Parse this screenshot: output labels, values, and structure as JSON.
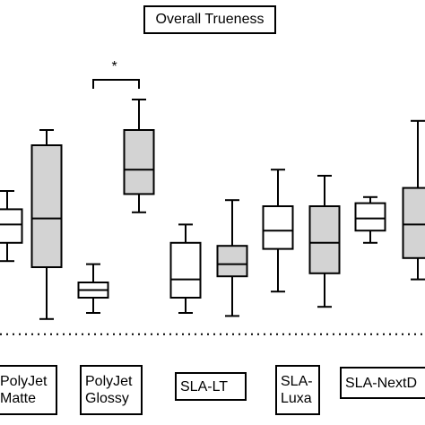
{
  "chart_data": {
    "type": "boxplot",
    "title": "Overall Trueness",
    "xlabel": "",
    "ylabel": "",
    "ylim": [
      0,
      100
    ],
    "reference_line": 8,
    "significance": {
      "between": [
        2,
        3
      ],
      "label": "*"
    },
    "categories": [
      {
        "group": "",
        "lines": []
      },
      {
        "group": "PolyJet Matte",
        "lines": [
          "PolyJet",
          "Matte"
        ]
      },
      {
        "group": "PolyJet Glossy",
        "lines": [
          "PolyJet",
          "Glossy"
        ]
      },
      {
        "group": "SLA-LT",
        "lines": [
          "SLA-LT"
        ]
      },
      {
        "group": "SLA-Luxa",
        "lines": [
          "SLA-",
          "Luxa"
        ]
      },
      {
        "group": "SLA-NextDent",
        "lines": [
          "SLA-NextD"
        ]
      }
    ],
    "boxes": [
      {
        "group": 0,
        "shade": "white",
        "min": 32,
        "q1": 38,
        "median": 44,
        "q3": 49,
        "max": 55
      },
      {
        "group": 1,
        "shade": "gray",
        "min": 13,
        "q1": 30,
        "median": 46,
        "q3": 70,
        "max": 75
      },
      {
        "group": 2,
        "shade": "white",
        "min": 15,
        "q1": 20,
        "median": 22.5,
        "q3": 25,
        "max": 31
      },
      {
        "group": 3,
        "shade": "gray",
        "min": 48,
        "q1": 54,
        "median": 62,
        "q3": 75,
        "max": 85
      },
      {
        "group": 4,
        "shade": "white",
        "min": 15,
        "q1": 20,
        "median": 26,
        "q3": 38,
        "max": 44
      },
      {
        "group": 5,
        "shade": "gray",
        "min": 14,
        "q1": 27,
        "median": 31,
        "q3": 37,
        "max": 52
      },
      {
        "group": 6,
        "shade": "white",
        "min": 22,
        "q1": 36,
        "median": 42,
        "q3": 50,
        "max": 62
      },
      {
        "group": 7,
        "shade": "gray",
        "min": 17,
        "q1": 28,
        "median": 38,
        "q3": 50,
        "max": 60
      },
      {
        "group": 8,
        "shade": "white",
        "min": 38,
        "q1": 42,
        "median": 46,
        "q3": 51,
        "max": 53
      },
      {
        "group": 9,
        "shade": "gray",
        "min": 26,
        "q1": 33,
        "median": 44,
        "q3": 56,
        "max": 78
      }
    ],
    "colors": {
      "gray": "#d3d3d3",
      "white": "#ffffff",
      "stroke": "#000000"
    }
  }
}
